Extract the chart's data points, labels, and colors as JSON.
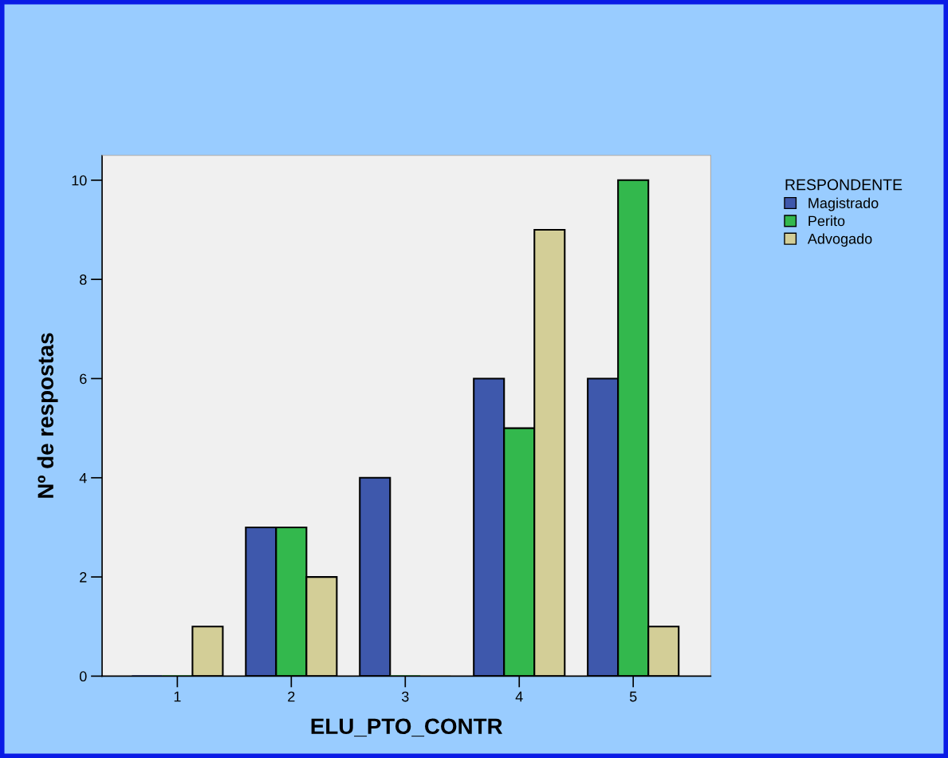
{
  "chart_data": {
    "type": "bar",
    "xlabel": "ELU_PTO_CONTR",
    "ylabel": "Nº de respostas",
    "legend_title": "RESPONDENTE",
    "legend": "top right",
    "grid": false,
    "categories": [
      "1",
      "2",
      "3",
      "4",
      "5"
    ],
    "series": [
      {
        "name": "Magistrado",
        "color": "#3e58ac",
        "values": [
          0,
          3,
          4,
          6,
          6
        ]
      },
      {
        "name": "Perito",
        "color": "#33b84d",
        "values": [
          0,
          3,
          0,
          5,
          10
        ]
      },
      {
        "name": "Advogado",
        "color": "#d3ce97",
        "values": [
          1,
          2,
          0,
          9,
          1
        ]
      }
    ],
    "ylim": [
      0,
      10.5
    ],
    "yticks": [
      0,
      2,
      4,
      6,
      8,
      10
    ]
  }
}
